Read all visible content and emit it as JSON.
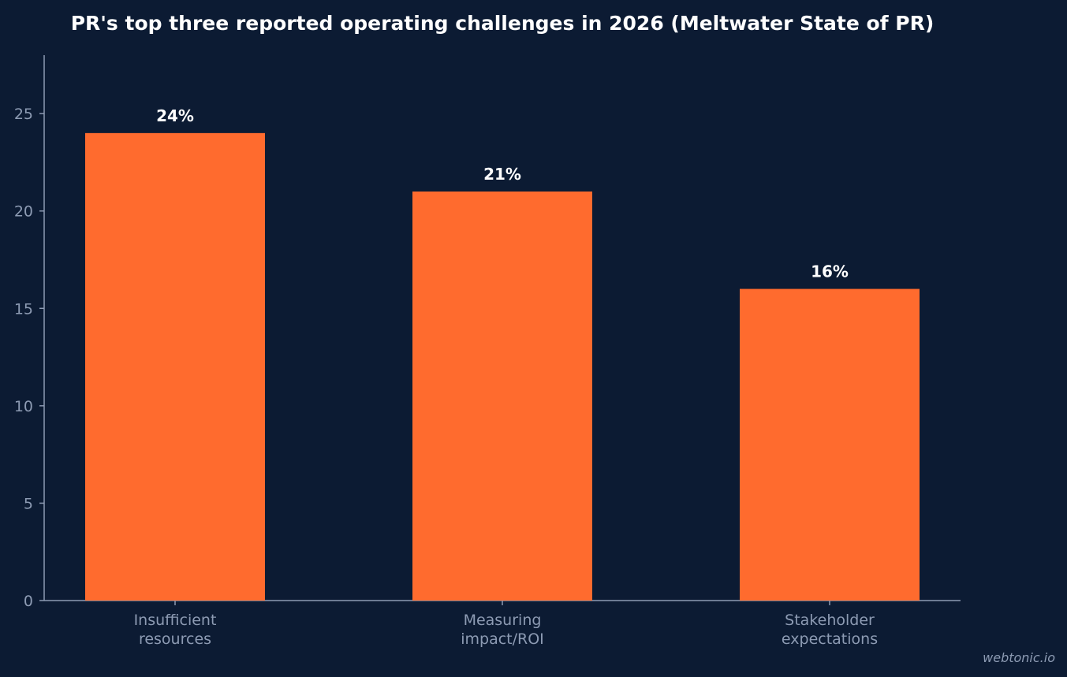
{
  "colors": {
    "background": "#0c1b33",
    "bar": "#ff6b2e",
    "axis": "#8d9bb3",
    "label": "#ffffff"
  },
  "watermark": "webtonic.io",
  "chart_data": {
    "type": "bar",
    "title": "PR's top three reported operating challenges in 2026 (Meltwater State of PR)",
    "xlabel": "",
    "ylabel": "",
    "categories": [
      [
        "Insufficient",
        "resources"
      ],
      [
        "Measuring",
        "impact/ROI"
      ],
      [
        "Stakeholder",
        "expectations"
      ]
    ],
    "values": [
      24,
      21,
      16
    ],
    "data_labels": [
      "24%",
      "21%",
      "16%"
    ],
    "ylim": [
      0,
      28
    ],
    "yticks": [
      0,
      5,
      10,
      15,
      20,
      25
    ],
    "grid": false,
    "legend": "none"
  }
}
